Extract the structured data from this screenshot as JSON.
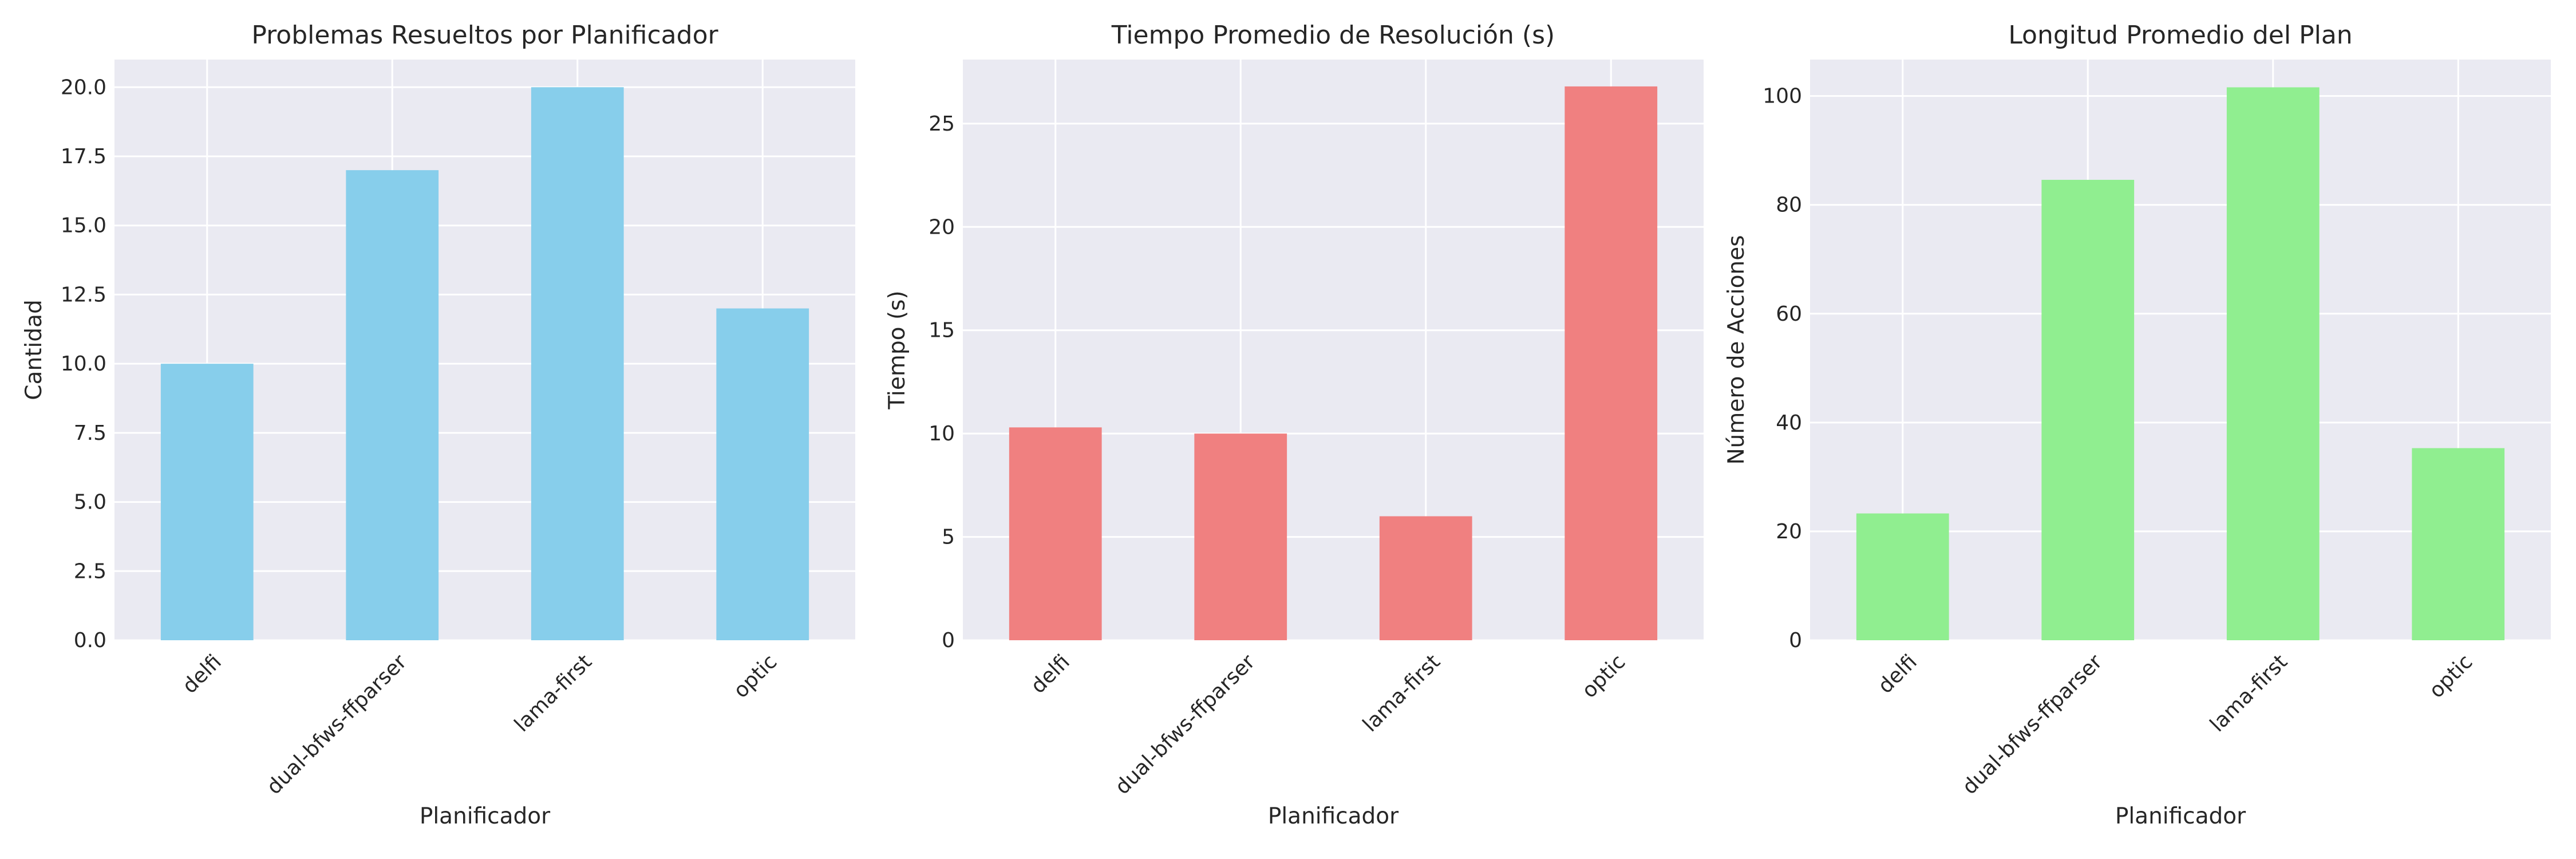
{
  "chart_data": [
    {
      "type": "bar",
      "title": "Problemas Resueltos por Planificador",
      "xlabel": "Planificador",
      "ylabel": "Cantidad",
      "categories": [
        "delfi",
        "dual-bfws-ffparser",
        "lama-first",
        "optic"
      ],
      "values": [
        10,
        17,
        20,
        12
      ],
      "ylim": [
        0,
        21
      ],
      "yticks": [
        0,
        2.5,
        5,
        7.5,
        10,
        12.5,
        15,
        17.5,
        20
      ],
      "ytick_labels": [
        "0.0",
        "2.5",
        "5.0",
        "7.5",
        "10.0",
        "12.5",
        "15.0",
        "17.5",
        "20.0"
      ],
      "color": "#87ceeb",
      "grid": true
    },
    {
      "type": "bar",
      "title": "Tiempo Promedio de Resolución (s)",
      "xlabel": "Planificador",
      "ylabel": "Tiempo (s)",
      "categories": [
        "delfi",
        "dual-bfws-ffparser",
        "lama-first",
        "optic"
      ],
      "values": [
        10.3,
        10.0,
        6.0,
        26.8
      ],
      "ylim": [
        0,
        28.1
      ],
      "yticks": [
        0,
        5,
        10,
        15,
        20,
        25
      ],
      "ytick_labels": [
        "0",
        "5",
        "10",
        "15",
        "20",
        "25"
      ],
      "color": "#f08080",
      "grid": true
    },
    {
      "type": "bar",
      "title": "Longitud Promedio del Plan",
      "xlabel": "Planificador",
      "ylabel": "Número de Acciones",
      "categories": [
        "delfi",
        "dual-bfws-ffparser",
        "lama-first",
        "optic"
      ],
      "values": [
        23.3,
        84.6,
        101.6,
        35.3
      ],
      "ylim": [
        0,
        106.7
      ],
      "yticks": [
        0,
        20,
        40,
        60,
        80,
        100
      ],
      "ytick_labels": [
        "0",
        "20",
        "40",
        "60",
        "80",
        "100"
      ],
      "color": "#90ee90",
      "grid": true
    }
  ]
}
